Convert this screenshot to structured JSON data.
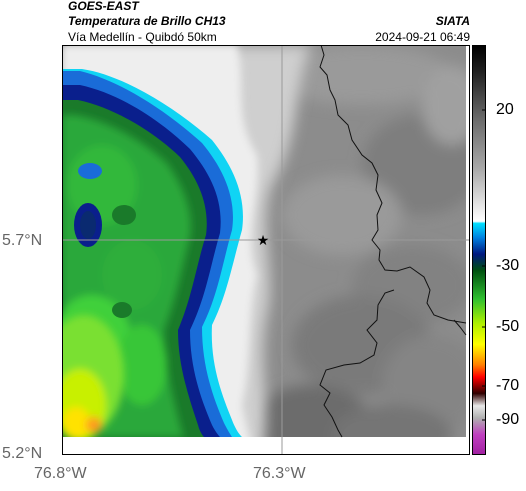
{
  "header": {
    "source": "GOES-EAST",
    "product": "Temperatura de Brillo CH13",
    "organization": "SIATA",
    "area": "Vía Medellín - Quibdó 50km",
    "datetime": "2024-09-21 06:49"
  },
  "map": {
    "lat_ticks": [
      "5.7°N",
      "5.2°N"
    ],
    "lon_ticks": [
      "76.8°W",
      "76.3°W"
    ],
    "marker": "star-marker",
    "colors": {
      "frame": "#000000",
      "gridline": "#8c8c8c",
      "border": "#111111"
    }
  },
  "colorbar": {
    "ticks": [
      "20",
      "-30",
      "-50",
      "-70",
      "-90"
    ],
    "colors": [
      "#000000",
      "#4a4a4a",
      "#8a8a8a",
      "#d0d0d0",
      "#ffffff",
      "#00d8ff",
      "#0030a0",
      "#004000",
      "#30c030",
      "#c8ff00",
      "#ffff00",
      "#ff8000",
      "#ff0000",
      "#300000",
      "#ffffff",
      "#c040c0"
    ]
  }
}
